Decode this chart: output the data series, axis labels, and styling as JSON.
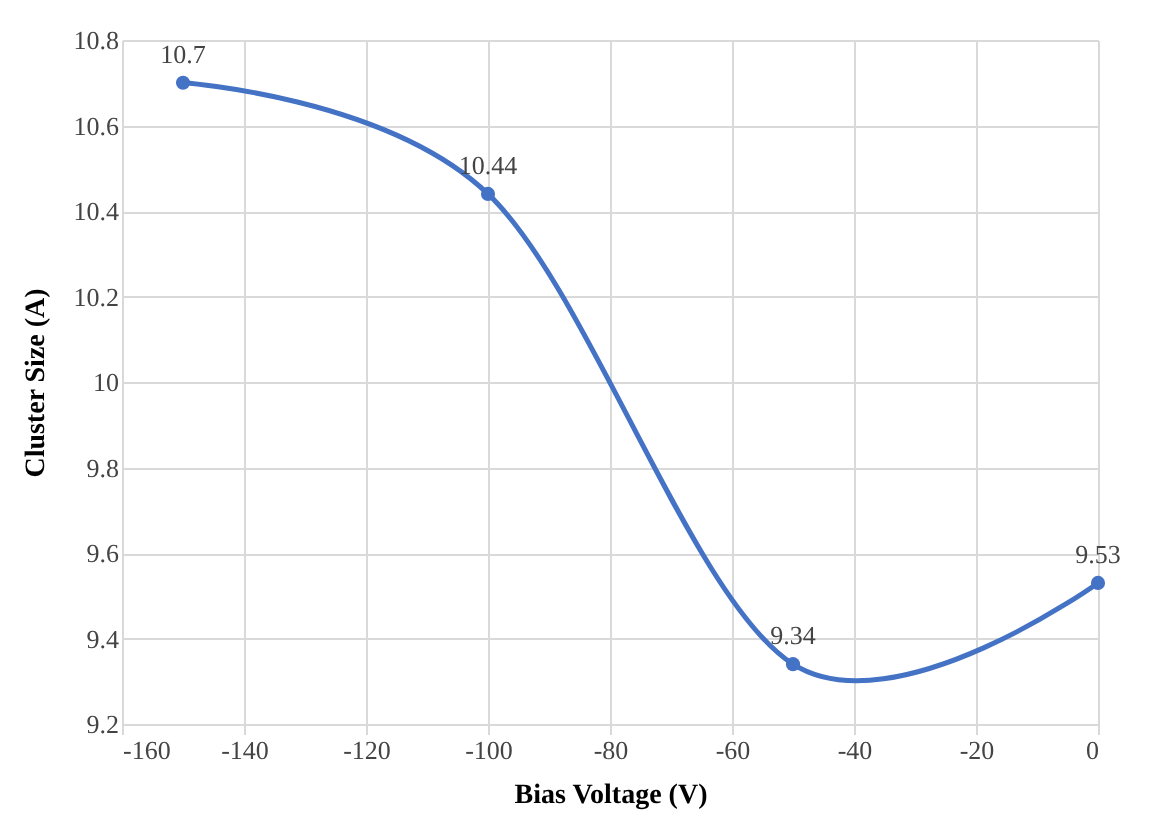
{
  "chart_data": {
    "type": "line",
    "xlabel": "Bias Voltage (V)",
    "ylabel": "Cluster Size (A)",
    "x": [
      -150,
      -100,
      -50,
      0
    ],
    "series": [
      {
        "color": "#4472c4",
        "values": [
          10.7,
          10.44,
          9.34,
          9.53
        ]
      }
    ],
    "xlim": [
      -160,
      0
    ],
    "xticks": [
      -160,
      -140,
      -120,
      -100,
      -80,
      -60,
      -40,
      -20,
      0
    ],
    "ylim": [
      9.2,
      10.8
    ],
    "yticks": [
      9.2,
      9.4,
      9.6,
      9.8,
      10,
      10.2,
      10.4,
      10.6,
      10.8
    ],
    "grid": true,
    "marker": "circle",
    "data_labels": true
  }
}
